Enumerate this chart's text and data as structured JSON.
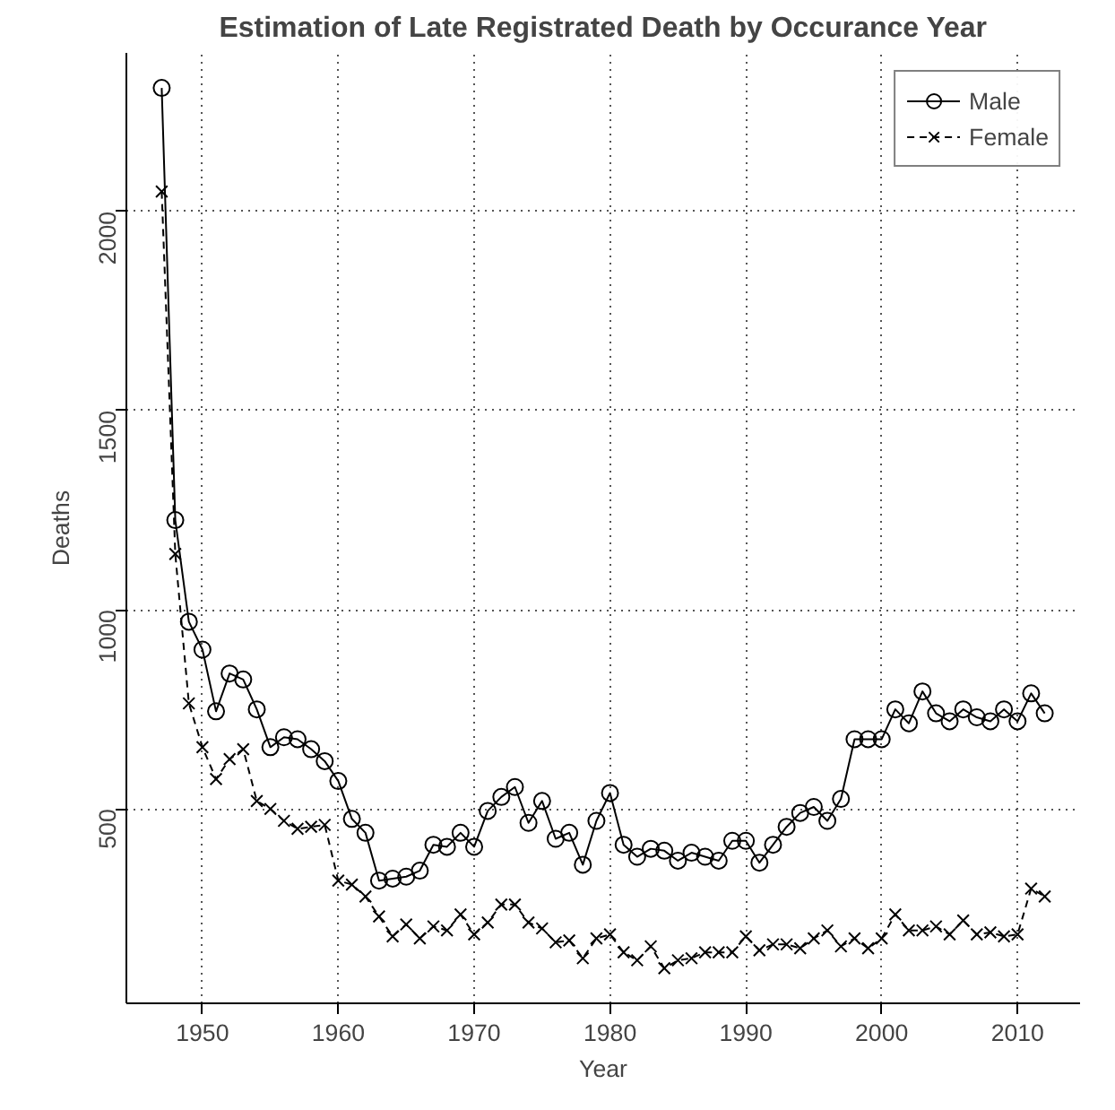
{
  "chart_data": {
    "type": "line",
    "title": "Estimation of Late Registrated Death by Occurance Year",
    "xlabel": "Year",
    "ylabel": "Deaths",
    "x": [
      1947,
      1948,
      1949,
      1950,
      1951,
      1952,
      1953,
      1954,
      1955,
      1956,
      1957,
      1958,
      1959,
      1960,
      1961,
      1962,
      1963,
      1964,
      1965,
      1966,
      1967,
      1968,
      1969,
      1970,
      1971,
      1972,
      1973,
      1974,
      1975,
      1976,
      1977,
      1978,
      1979,
      1980,
      1981,
      1982,
      1983,
      1984,
      1985,
      1986,
      1987,
      1988,
      1989,
      1990,
      1991,
      1992,
      1993,
      1994,
      1995,
      1996,
      1997,
      1998,
      1999,
      2000,
      2001,
      2002,
      2003,
      2004,
      2005,
      2006,
      2007,
      2008,
      2009,
      2010,
      2011,
      2012
    ],
    "series": [
      {
        "name": "Male",
        "color": "#000000",
        "marker": "circle",
        "line_style": "solid",
        "values": [
          2310,
          1225,
          970,
          900,
          745,
          840,
          825,
          750,
          655,
          680,
          675,
          650,
          620,
          570,
          475,
          440,
          320,
          325,
          330,
          345,
          410,
          405,
          440,
          405,
          495,
          530,
          555,
          465,
          520,
          425,
          440,
          360,
          470,
          540,
          410,
          380,
          400,
          395,
          370,
          390,
          380,
          370,
          420,
          420,
          365,
          410,
          455,
          490,
          505,
          470,
          525,
          675,
          675,
          675,
          750,
          715,
          795,
          740,
          720,
          750,
          730,
          720,
          750,
          720,
          790,
          740
        ]
      },
      {
        "name": "Female",
        "color": "#000000",
        "marker": "cross",
        "line_style": "dashed",
        "values": [
          2050,
          1140,
          765,
          655,
          575,
          625,
          650,
          520,
          500,
          470,
          450,
          455,
          460,
          320,
          310,
          280,
          230,
          180,
          210,
          175,
          205,
          195,
          235,
          185,
          215,
          260,
          260,
          215,
          200,
          165,
          170,
          125,
          175,
          185,
          140,
          120,
          155,
          100,
          120,
          125,
          140,
          140,
          140,
          180,
          145,
          160,
          160,
          150,
          175,
          195,
          155,
          175,
          150,
          175,
          235,
          195,
          195,
          205,
          185,
          220,
          185,
          190,
          180,
          185,
          300,
          280
        ]
      }
    ],
    "xlim": [
      1944.4,
      2014.6
    ],
    "ylim": [
      12,
      2398
    ],
    "xticks": [
      1950,
      1960,
      1970,
      1980,
      1990,
      2000,
      2010
    ],
    "yticks": [
      500,
      1000,
      1500,
      2000
    ],
    "grid": true,
    "legend": "top right"
  }
}
